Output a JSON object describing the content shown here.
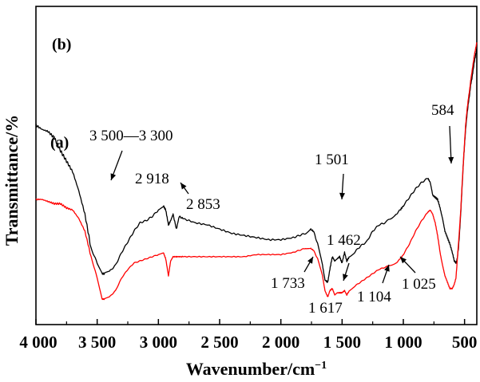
{
  "chart_data": {
    "type": "line",
    "xlabel": "Wavenumber/cm",
    "xlabel_sup": "−1",
    "ylabel": "Transmittance/%",
    "xlim": [
      4000,
      400
    ],
    "x_reversed": true,
    "x_ticks": [
      4000,
      3500,
      3000,
      2500,
      2000,
      1500,
      1000,
      500
    ],
    "x_tick_labels": [
      "4 000",
      "3 500",
      "3 000",
      "2 500",
      "2 000",
      "1 500",
      "1 000",
      "500"
    ],
    "y_ticks_labeled": false,
    "grid": false,
    "series": [
      {
        "name": "(b)",
        "color": "#000000",
        "x": [
          4000,
          3950,
          3900,
          3850,
          3800,
          3750,
          3700,
          3650,
          3600,
          3550,
          3500,
          3460,
          3440,
          3400,
          3350,
          3300,
          3250,
          3200,
          3150,
          3100,
          3050,
          3000,
          2960,
          2940,
          2918,
          2900,
          2880,
          2853,
          2830,
          2800,
          2700,
          2600,
          2500,
          2400,
          2300,
          2200,
          2100,
          2000,
          1900,
          1850,
          1800,
          1760,
          1733,
          1700,
          1660,
          1640,
          1617,
          1600,
          1580,
          1560,
          1540,
          1520,
          1501,
          1480,
          1462,
          1440,
          1400,
          1350,
          1300,
          1250,
          1200,
          1150,
          1104,
          1060,
          1025,
          1000,
          950,
          900,
          850,
          800,
          780,
          760,
          740,
          720,
          700,
          680,
          660,
          640,
          620,
          600,
          584,
          570,
          560,
          550,
          540,
          530,
          520,
          510,
          500,
          490,
          480,
          470,
          460,
          450,
          440,
          430,
          420,
          410,
          400
        ],
        "y": [
          74,
          72,
          71,
          68,
          62,
          57,
          52,
          43,
          32,
          16,
          9,
          4,
          4,
          5,
          8,
          14,
          19,
          24,
          28,
          29,
          31,
          34,
          36,
          34,
          27,
          29,
          32,
          25,
          31,
          30,
          28,
          27,
          25,
          23,
          22,
          21,
          20,
          20,
          21,
          22,
          23,
          25,
          24,
          18,
          8,
          1,
          0,
          6,
          12,
          10,
          11,
          12,
          9,
          14,
          10,
          12,
          14,
          17,
          19,
          24,
          27,
          28,
          30,
          32,
          34,
          36,
          40,
          44,
          47,
          49,
          47,
          41,
          40,
          39,
          35,
          30,
          24,
          21,
          18,
          14,
          10,
          9,
          11,
          16,
          24,
          34,
          45,
          56,
          65,
          73,
          79,
          84,
          88,
          93,
          96,
          100,
          104,
          107,
          110
        ],
        "label": "(b)"
      },
      {
        "name": "(a)",
        "color": "#ff0000",
        "x": [
          4000,
          3950,
          3900,
          3850,
          3800,
          3750,
          3700,
          3650,
          3600,
          3550,
          3500,
          3460,
          3440,
          3400,
          3350,
          3300,
          3250,
          3200,
          3150,
          3100,
          3050,
          3000,
          2960,
          2940,
          2918,
          2900,
          2880,
          2853,
          2830,
          2800,
          2700,
          2600,
          2500,
          2400,
          2300,
          2200,
          2100,
          2000,
          1900,
          1850,
          1800,
          1760,
          1733,
          1700,
          1660,
          1640,
          1617,
          1600,
          1580,
          1560,
          1540,
          1520,
          1501,
          1480,
          1462,
          1440,
          1400,
          1350,
          1300,
          1250,
          1200,
          1150,
          1104,
          1060,
          1025,
          1000,
          950,
          900,
          850,
          800,
          780,
          760,
          740,
          720,
          700,
          680,
          660,
          640,
          620,
          600,
          584,
          570,
          560,
          550,
          540,
          530,
          520,
          510,
          500,
          490,
          480,
          470,
          460,
          450,
          440,
          430,
          420,
          410,
          400
        ],
        "y": [
          39,
          39,
          38,
          37,
          37,
          35,
          34,
          30,
          24,
          12,
          2,
          -8,
          -8,
          -7,
          -4,
          2,
          6,
          9,
          10,
          11,
          12,
          13,
          14,
          11,
          3,
          10,
          12,
          12,
          12,
          12,
          12,
          12,
          12,
          12,
          12,
          13,
          13,
          13,
          14,
          15,
          16,
          16,
          15,
          11,
          3,
          -4,
          -7,
          -4,
          -3,
          -6,
          -5,
          -5,
          -5,
          -4,
          -6,
          -4,
          -2,
          0,
          2,
          4,
          6,
          7,
          8,
          9,
          11,
          13,
          18,
          24,
          29,
          33,
          34,
          32,
          28,
          22,
          14,
          8,
          3,
          0,
          -3,
          -3,
          -1,
          2,
          10,
          18,
          26,
          35,
          46,
          56,
          66,
          75,
          81,
          86,
          90,
          95,
          99,
          103,
          107,
          110,
          113
        ],
        "label": "(a)"
      }
    ],
    "annotations": [
      {
        "text": "3 500—3 300",
        "points_to": [
          3420,
          12
        ]
      },
      {
        "text": "2 918",
        "points_to": [
          2918,
          27
        ]
      },
      {
        "text": "2 853",
        "points_to": [
          2853,
          25
        ]
      },
      {
        "text": "1 501",
        "points_to": [
          1501,
          9
        ]
      },
      {
        "text": "584",
        "points_to": [
          584,
          9
        ]
      },
      {
        "text": "1 733",
        "points_to": [
          1733,
          15
        ]
      },
      {
        "text": "1 617",
        "points_to": [
          1617,
          -7
        ]
      },
      {
        "text": "1 462",
        "points_to": [
          1462,
          -6
        ]
      },
      {
        "text": "1 104",
        "points_to": [
          1104,
          8
        ]
      },
      {
        "text": "1 025",
        "points_to": [
          1025,
          11
        ]
      }
    ]
  }
}
